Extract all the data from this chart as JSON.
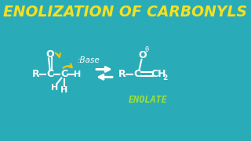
{
  "bg_color": "#2aacb8",
  "title": "ENOLIZATION OF CARBONYLS",
  "title_color": "#f5e020",
  "title_fontsize": 13.5,
  "enolate_color": "#a0e030",
  "white": "#ffffff",
  "yellow": "#f5c800",
  "figsize": [
    3.2,
    1.8
  ],
  "dpi": 100,
  "xlim": [
    0,
    10
  ],
  "ylim": [
    0,
    6
  ]
}
